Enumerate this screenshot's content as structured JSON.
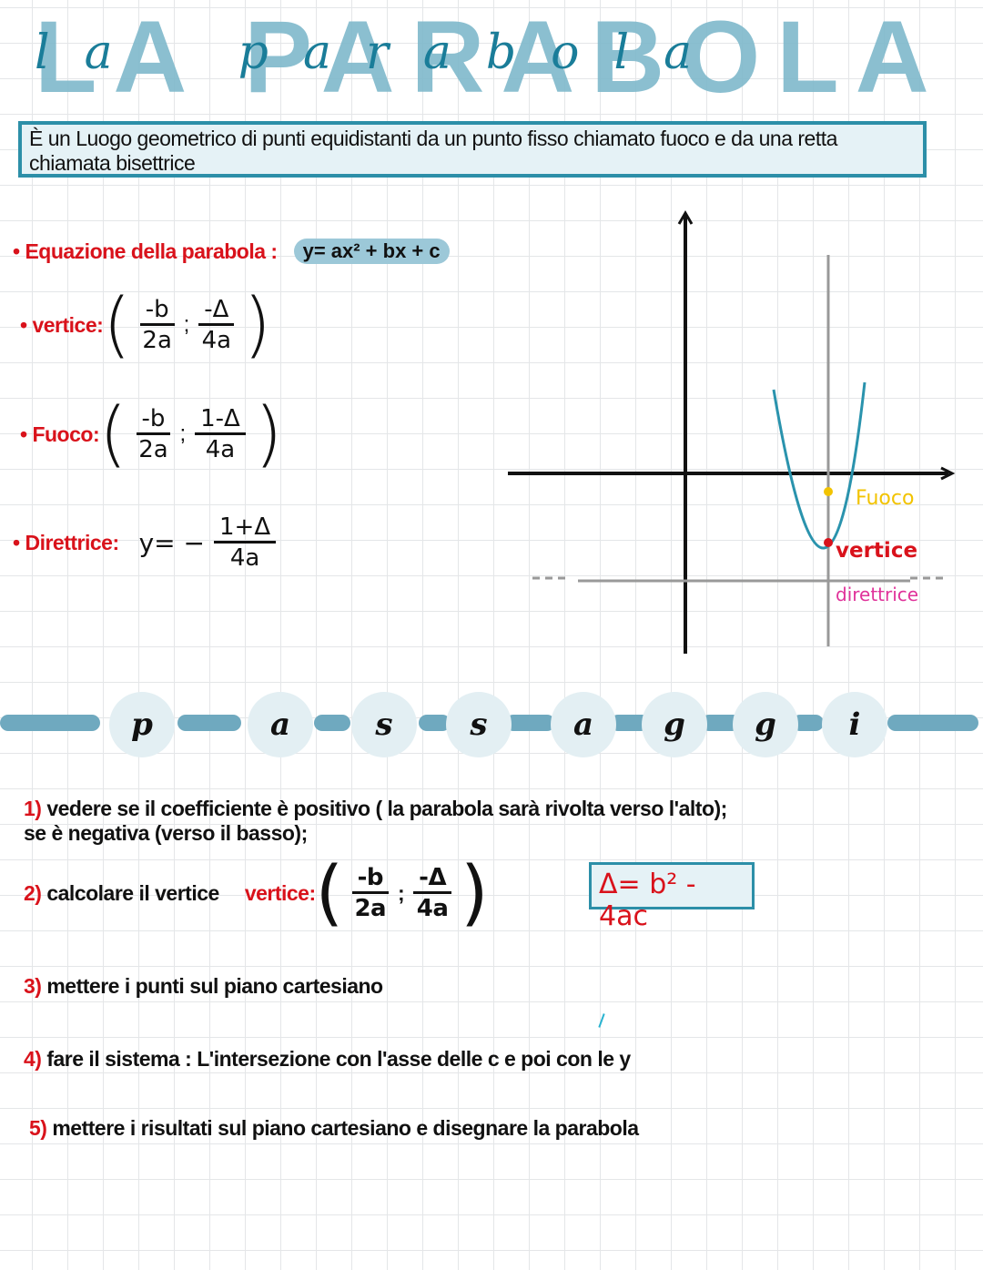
{
  "title": {
    "text": "LA PARABOLA",
    "script_letters": [
      "l",
      "a",
      "p",
      "a",
      "r",
      "a",
      "b",
      "o",
      "l",
      "a"
    ]
  },
  "definition": "È un Luogo geometrico di punti equidistanti da un punto fisso chiamato fuoco e da una retta chiamata bisettrice",
  "equation": {
    "label": "Equazione della parabola :",
    "formula": "y= ax² + bx + c"
  },
  "vertice": {
    "label": "vertice:",
    "x_num": "-b",
    "x_den": "2a",
    "sep": ";",
    "y_num": "-Δ",
    "y_den": "4a"
  },
  "fuoco": {
    "label": "Fuoco:",
    "x_num": "-b",
    "x_den": "2a",
    "sep": ";",
    "y_num": "1-Δ",
    "y_den": "4a"
  },
  "direttrice": {
    "label": "Direttrice:",
    "prefix": "y= −",
    "num": "1+Δ",
    "den": "4a"
  },
  "graph": {
    "labels": {
      "fuoco": "Fuoco",
      "vertice": "vertice",
      "direttrice": "direttrice"
    },
    "colors": {
      "curve": "#2a93ad",
      "fuoco": "#f2c300",
      "vertice": "#d9121b",
      "direttrice": "#e0329a"
    }
  },
  "passaggi": {
    "letters": [
      "p",
      "a",
      "s",
      "s",
      "a",
      "g",
      "g",
      "i"
    ]
  },
  "steps": [
    {
      "num": "1)",
      "text": "vedere se il coefficiente è positivo ( la parabola sarà rivolta verso l'alto);",
      "text2": "se è negativa (verso il basso);"
    },
    {
      "num": "2)",
      "text": "calcolare il vertice",
      "vlabel": "vertice:",
      "x_num": "-b",
      "x_den": "2a",
      "sep": ";",
      "y_num": "-Δ",
      "y_den": "4a",
      "delta": "Δ= b² - 4ac"
    },
    {
      "num": "3)",
      "text": "mettere i punti sul piano cartesiano"
    },
    {
      "num": "4)",
      "text": "fare il sistema : L'intersezione con l'asse delle c e poi con le y"
    },
    {
      "num": "5)",
      "text": "mettere i risultati sul piano cartesiano e disegnare la parabola"
    }
  ]
}
